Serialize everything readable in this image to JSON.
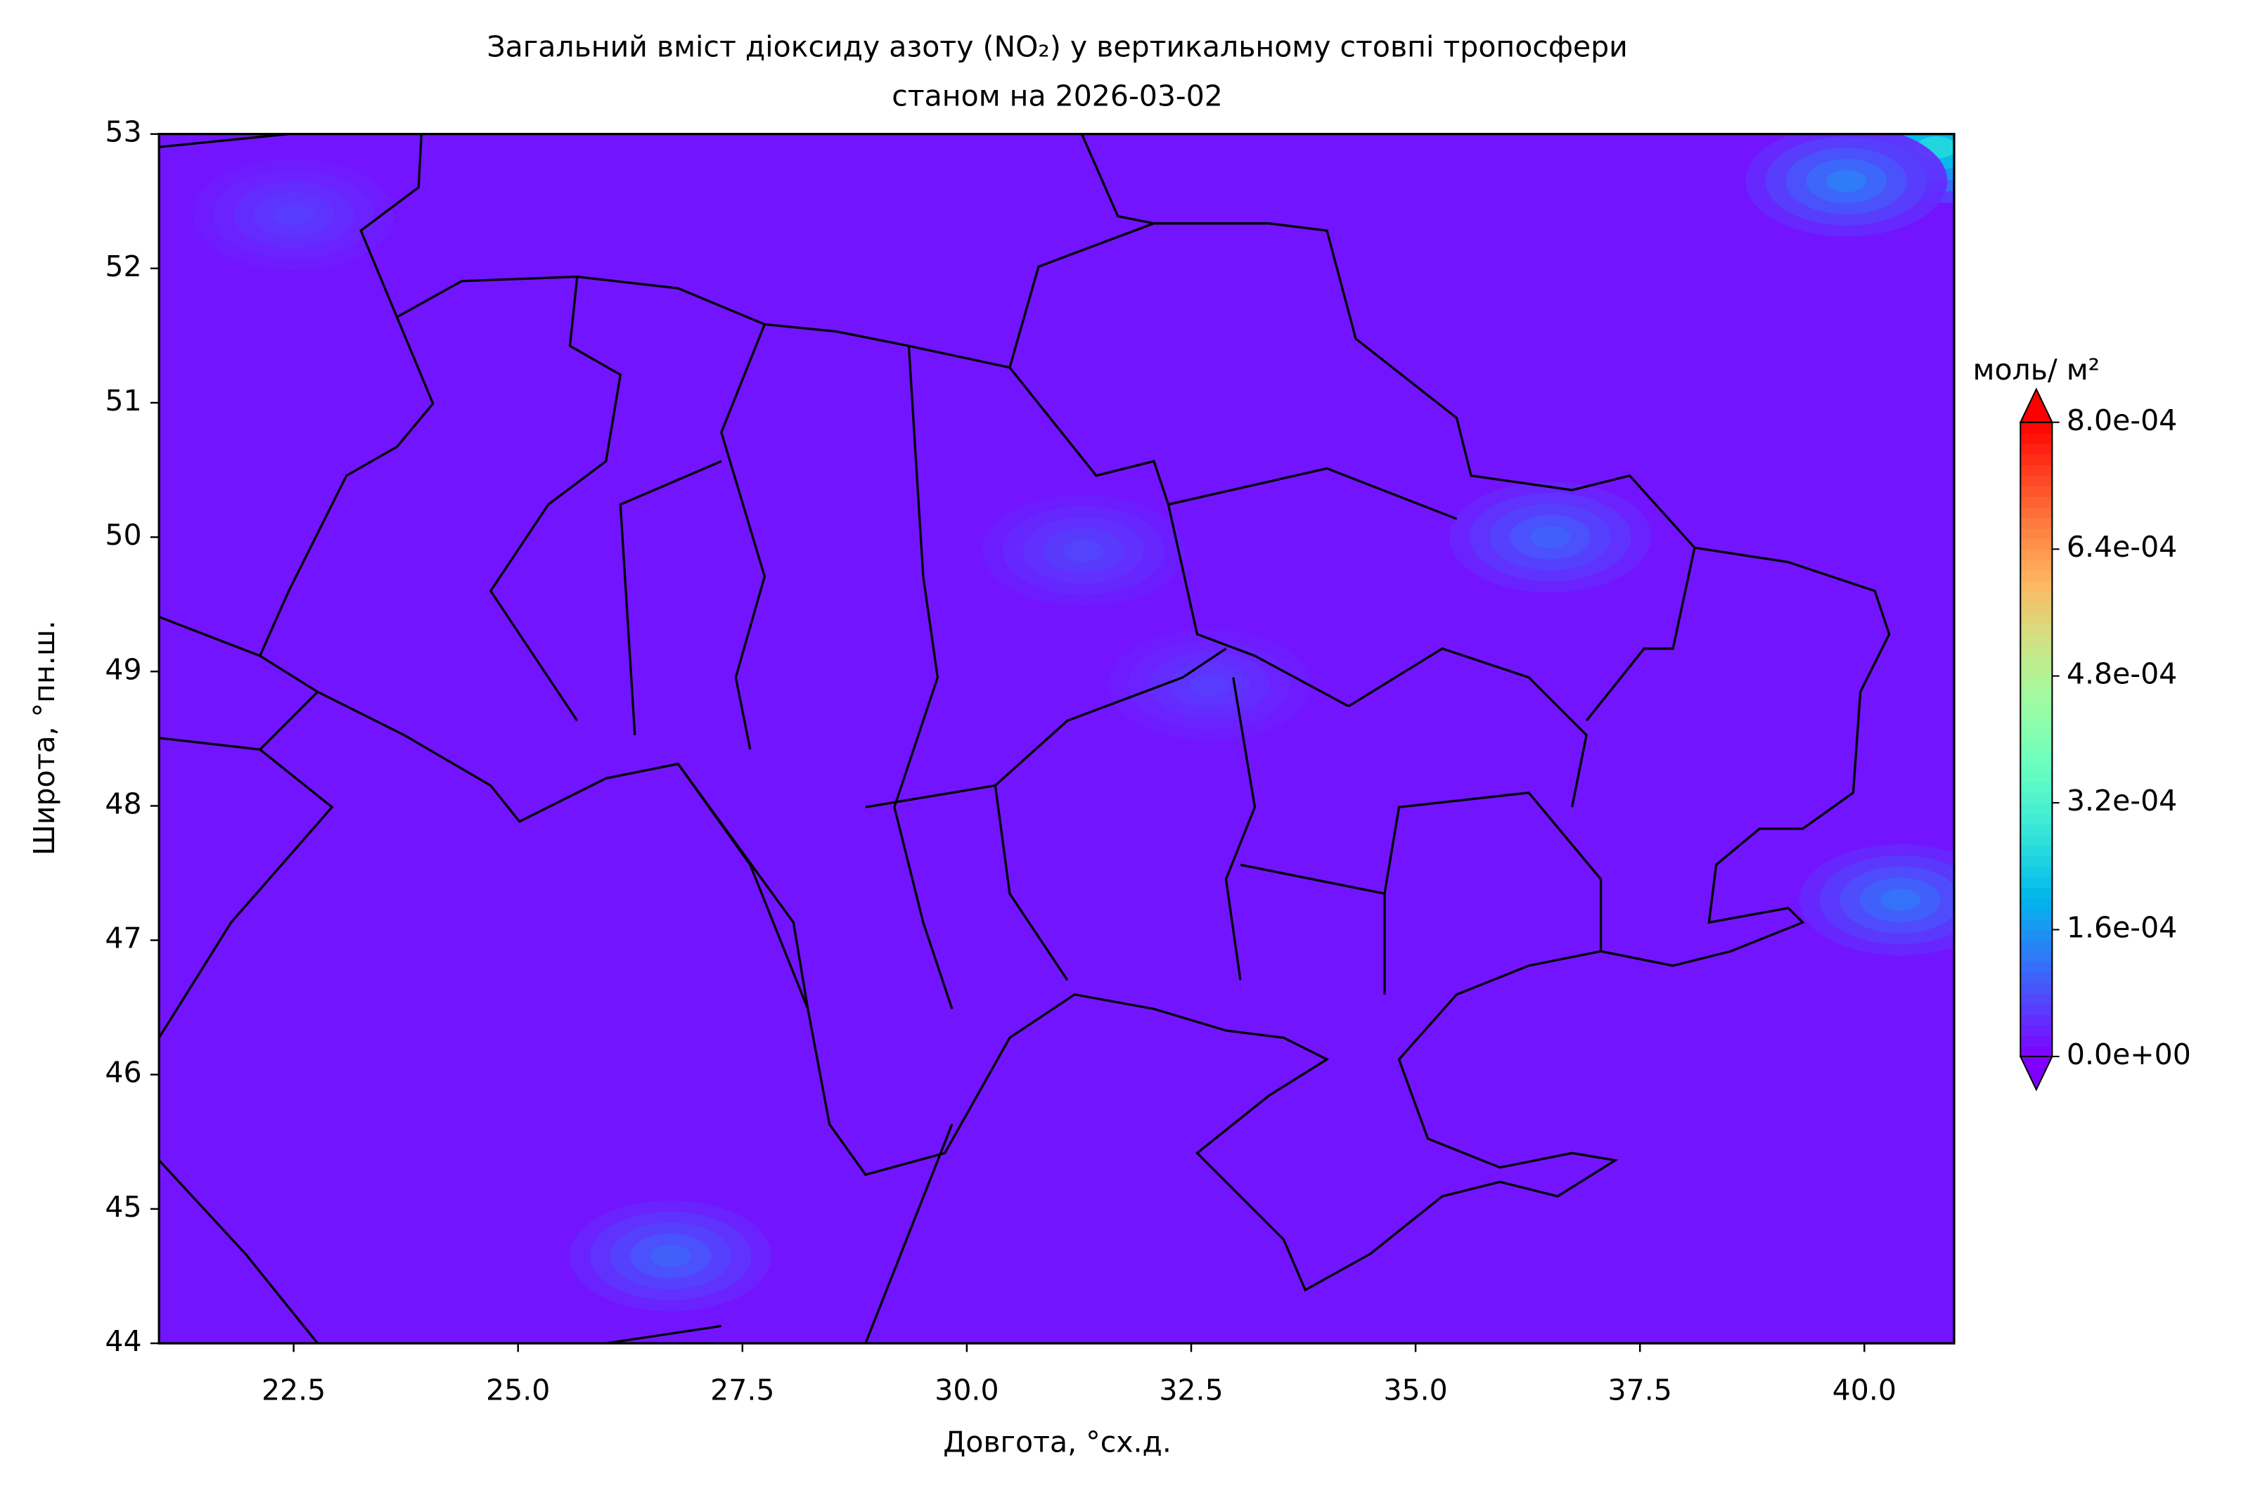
{
  "chart_data": {
    "type": "contour_map",
    "title": "Загальний вміст діоксиду азоту (NO₂) у вертикальному стовпі тропосфери",
    "subtitle": "станом на 2026-03-02",
    "x_label": "Довгота, °сх.д.",
    "y_label": "Широта, °пн.ш.",
    "colorbar_label": "моль/ м²",
    "colormap": "rainbow",
    "xlim": [
      21,
      41
    ],
    "ylim": [
      44,
      53
    ],
    "xticks": [
      22.5,
      {
        "value": 25,
        "label": "25.0"
      },
      27.5,
      {
        "value": 30,
        "label": "30.0"
      },
      32.5,
      {
        "value": 35,
        "label": "35.0"
      },
      37.5,
      {
        "value": 40,
        "label": "40.0"
      }
    ],
    "yticks": [
      44,
      45,
      46,
      47,
      48,
      49,
      50,
      51,
      52,
      53
    ],
    "clim": [
      0,
      0.0008
    ],
    "cticks": [
      {
        "value": 0,
        "label": "0.0e+00"
      },
      {
        "value": 0.00016,
        "label": "1.6e-04"
      },
      {
        "value": 0.00032,
        "label": "3.2e-04"
      },
      {
        "value": 0.00048,
        "label": "4.8e-04"
      },
      {
        "value": 0.00064,
        "label": "6.4e-04"
      },
      {
        "value": 0.0008,
        "label": "8.0e-04"
      }
    ],
    "background_value": 2e-05,
    "hotspots": [
      {
        "lon": 40.8,
        "lat": 52.9,
        "value": 0.00026
      },
      {
        "lon": 39.8,
        "lat": 52.65,
        "value": 0.00013
      },
      {
        "lon": 40.4,
        "lat": 47.3,
        "value": 0.00012
      },
      {
        "lon": 36.5,
        "lat": 50.0,
        "value": 0.0001
      },
      {
        "lon": 26.7,
        "lat": 44.65,
        "value": 0.0001
      },
      {
        "lon": 31.3,
        "lat": 49.9,
        "value": 7e-05
      },
      {
        "lon": 22.5,
        "lat": 52.4,
        "value": 6e-05
      },
      {
        "lon": 32.7,
        "lat": 48.9,
        "value": 6e-05
      }
    ]
  }
}
